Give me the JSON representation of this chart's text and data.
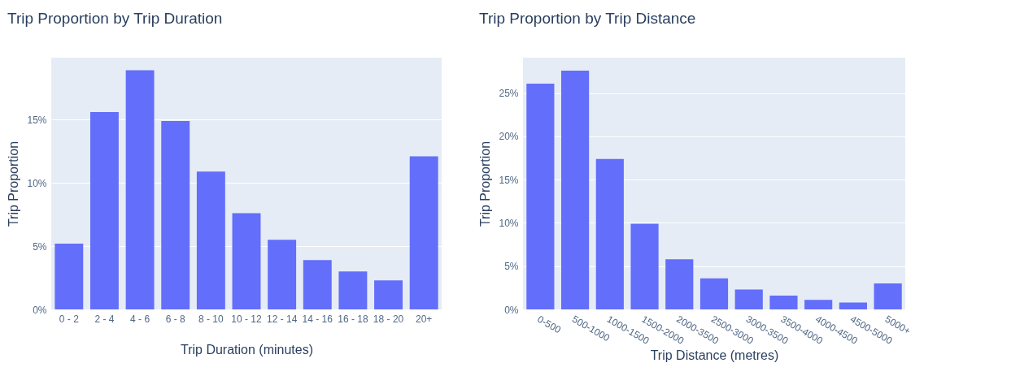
{
  "chart_data": [
    {
      "type": "bar",
      "title": "Trip Proportion by Trip Duration",
      "xlabel": "Trip Duration (minutes)",
      "ylabel": "Trip Proportion",
      "categories": [
        "0 - 2",
        "2 - 4",
        "4 - 6",
        "6 - 8",
        "8 - 10",
        "10 - 12",
        "12 - 14",
        "14 - 16",
        "16 - 18",
        "18 - 20",
        "20+"
      ],
      "series": [
        {
          "color": "#636efa",
          "values": [
            5.2,
            15.6,
            18.9,
            14.9,
            10.9,
            7.6,
            5.5,
            3.9,
            3.0,
            2.3,
            12.1
          ]
        }
      ],
      "ylim": [
        0,
        19.9
      ],
      "yticks": [
        {
          "value": 0,
          "label": "0%"
        },
        {
          "value": 5,
          "label": "5%"
        },
        {
          "value": 10,
          "label": "10%"
        },
        {
          "value": 15,
          "label": "15%"
        }
      ],
      "grid": "y",
      "legend": false
    },
    {
      "type": "bar",
      "title": "Trip Proportion by Trip Distance",
      "xlabel": "Trip Distance (metres)",
      "ylabel": "Trip Proportion",
      "categories": [
        "0-500",
        "500-1000",
        "1000-1500",
        "1500-2000",
        "2000-3500",
        "2500-3000",
        "3000-3500",
        "3500-4000",
        "4000-4500",
        "4500-5000",
        "5000+"
      ],
      "series": [
        {
          "color": "#636efa",
          "values": [
            26.1,
            27.6,
            17.4,
            9.9,
            5.8,
            3.6,
            2.3,
            1.6,
            1.1,
            0.8,
            3.0
          ]
        }
      ],
      "ylim": [
        0,
        29.1
      ],
      "yticks": [
        {
          "value": 0,
          "label": "0%"
        },
        {
          "value": 5,
          "label": "5%"
        },
        {
          "value": 10,
          "label": "10%"
        },
        {
          "value": 15,
          "label": "15%"
        },
        {
          "value": 20,
          "label": "20%"
        },
        {
          "value": 25,
          "label": "25%"
        }
      ],
      "grid": "y",
      "legend": false
    }
  ]
}
